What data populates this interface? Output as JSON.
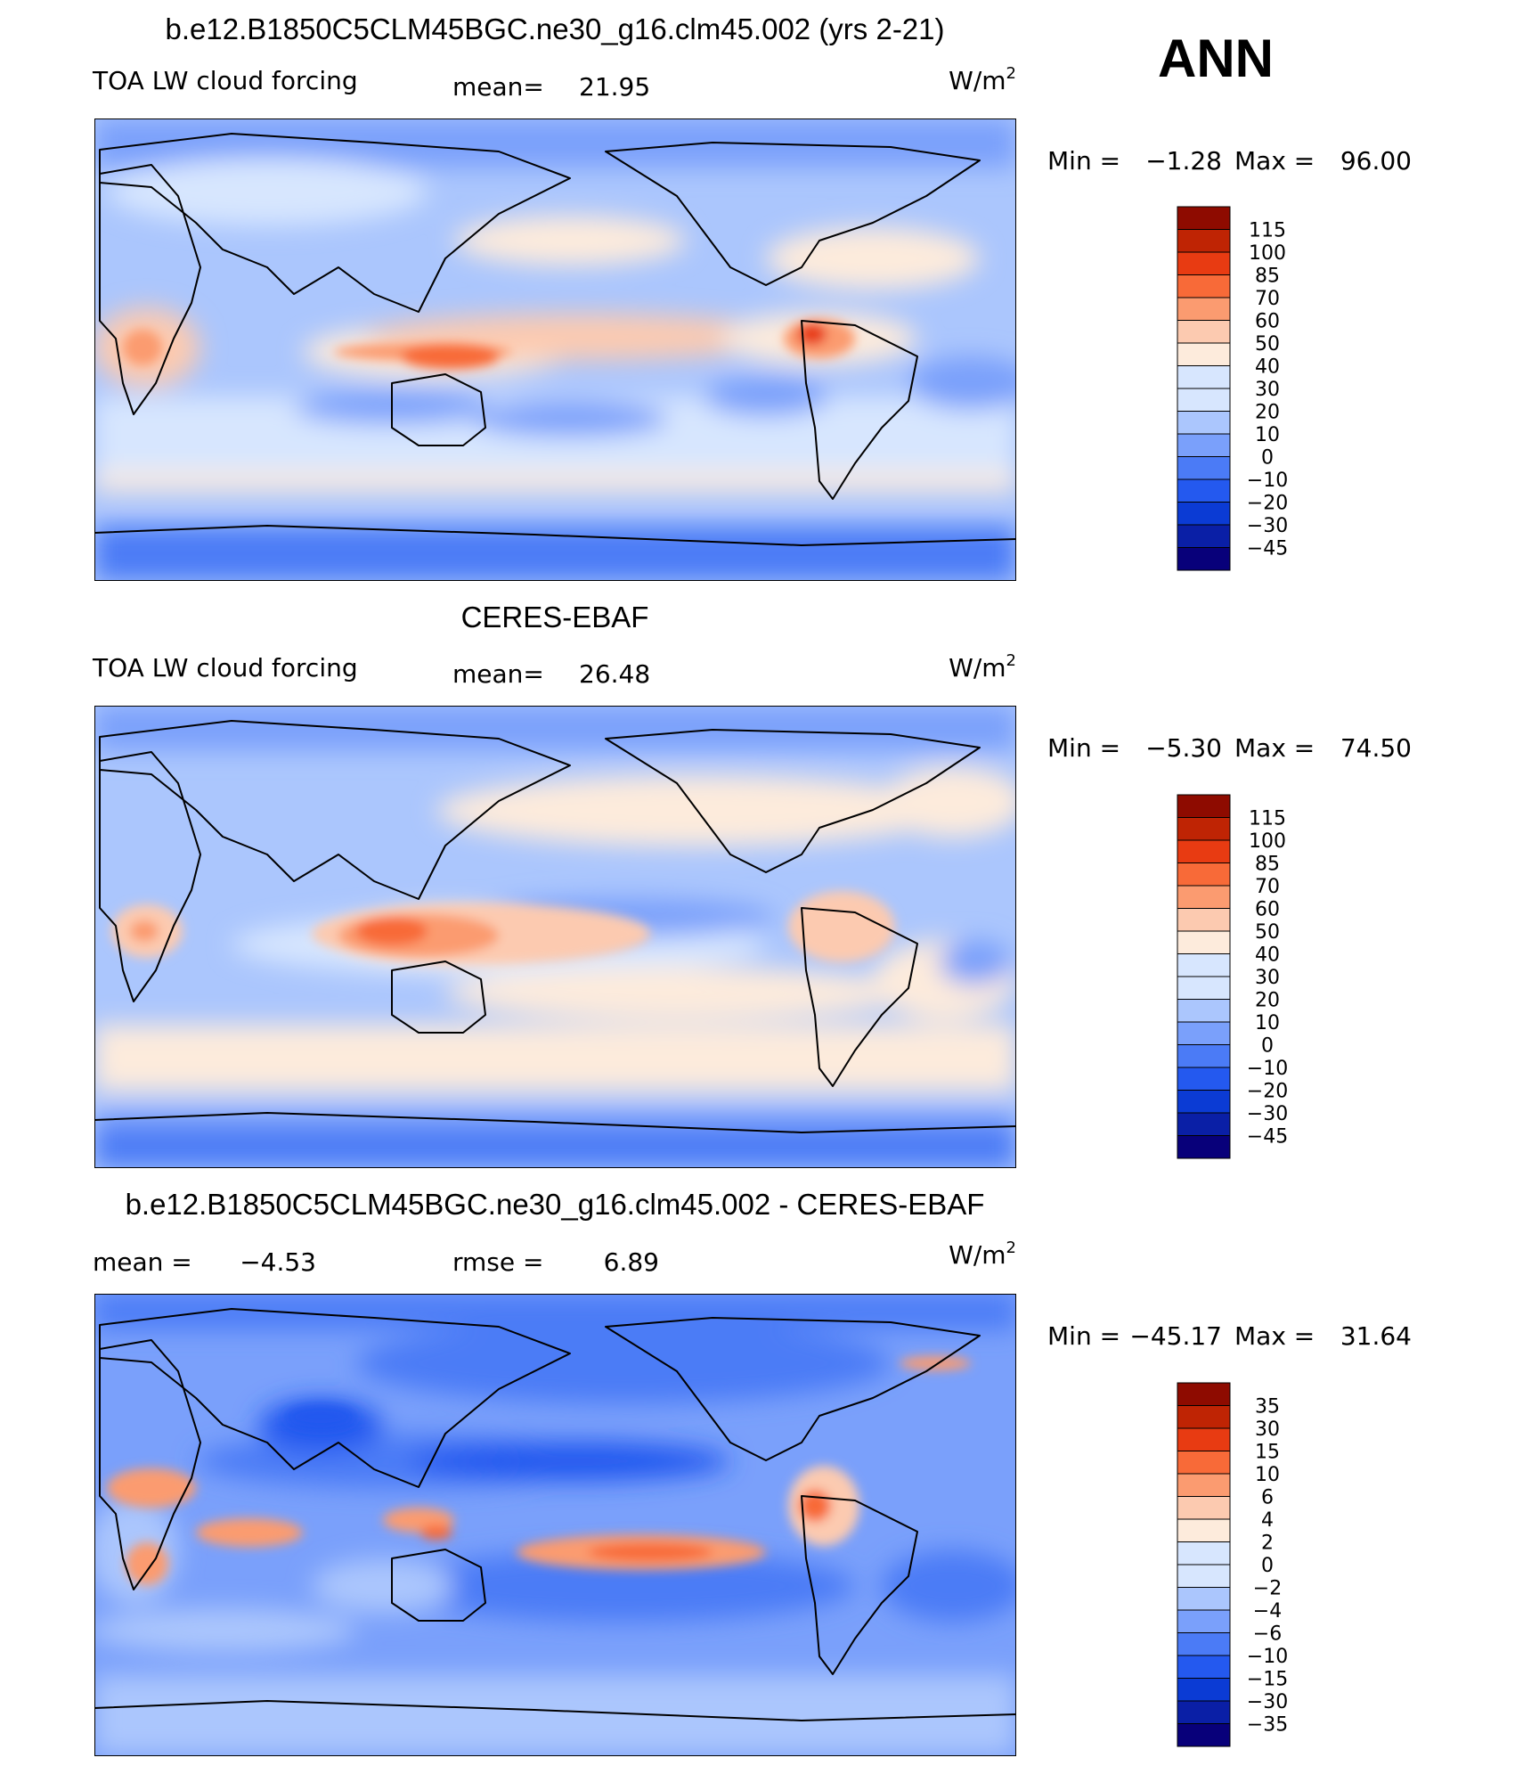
{
  "season": "ANN",
  "colors": {
    "model": [
      "#08007a",
      "#0a1fa6",
      "#0b3bd4",
      "#2459ef",
      "#4b7bf6",
      "#7aa0fb",
      "#abc6fd",
      "#d7e6fe",
      "#fdebdc",
      "#fccab0",
      "#fb9b70",
      "#f86a38",
      "#e83b12",
      "#bf2404",
      "#8e0b00"
    ],
    "diff": [
      "#08007a",
      "#0a1fa6",
      "#0b3bd4",
      "#2459ef",
      "#4b7bf6",
      "#7aa0fb",
      "#abc6fd",
      "#d7e6fe",
      "#fdebdc",
      "#fccab0",
      "#fb9b70",
      "#f86a38",
      "#e83b12",
      "#bf2404",
      "#8e0b00"
    ]
  },
  "chart_data": [
    {
      "type": "heatmap",
      "title": "b.e12.B1850C5CLM45BGC.ne30_g16.clm45.002 (yrs 2-21)",
      "variable": "TOA LW cloud forcing",
      "stat_label": "mean=",
      "stat_value": "21.95",
      "units_base": "W/m",
      "units_exp": "2",
      "min_label": "Min =",
      "min_value": "−1.28",
      "max_label": "Max =",
      "max_value": "96.00",
      "colorbar_levels": [
        "115",
        "100",
        "85",
        "70",
        "60",
        "50",
        "40",
        "30",
        "20",
        "10",
        "0",
        "−10",
        "−20",
        "−30",
        "−45"
      ]
    },
    {
      "type": "heatmap",
      "title": "CERES-EBAF",
      "variable": "TOA LW cloud forcing",
      "stat_label": "mean=",
      "stat_value": "26.48",
      "units_base": "W/m",
      "units_exp": "2",
      "min_label": "Min =",
      "min_value": "−5.30",
      "max_label": "Max =",
      "max_value": "74.50",
      "colorbar_levels": [
        "115",
        "100",
        "85",
        "70",
        "60",
        "50",
        "40",
        "30",
        "20",
        "10",
        "0",
        "−10",
        "−20",
        "−30",
        "−45"
      ]
    },
    {
      "type": "heatmap",
      "title": "b.e12.B1850C5CLM45BGC.ne30_g16.clm45.002 - CERES-EBAF",
      "stat_label": "mean =",
      "stat_value": "−4.53",
      "rmse_label": "rmse =",
      "rmse_value": "6.89",
      "units_base": "W/m",
      "units_exp": "2",
      "min_label": "Min =",
      "min_value": "−45.17",
      "max_label": "Max =",
      "max_value": "31.64",
      "colorbar_levels": [
        "35",
        "30",
        "15",
        "10",
        "6",
        "4",
        "2",
        "0",
        "−2",
        "−4",
        "−6",
        "−10",
        "−15",
        "−30",
        "−35"
      ]
    }
  ]
}
